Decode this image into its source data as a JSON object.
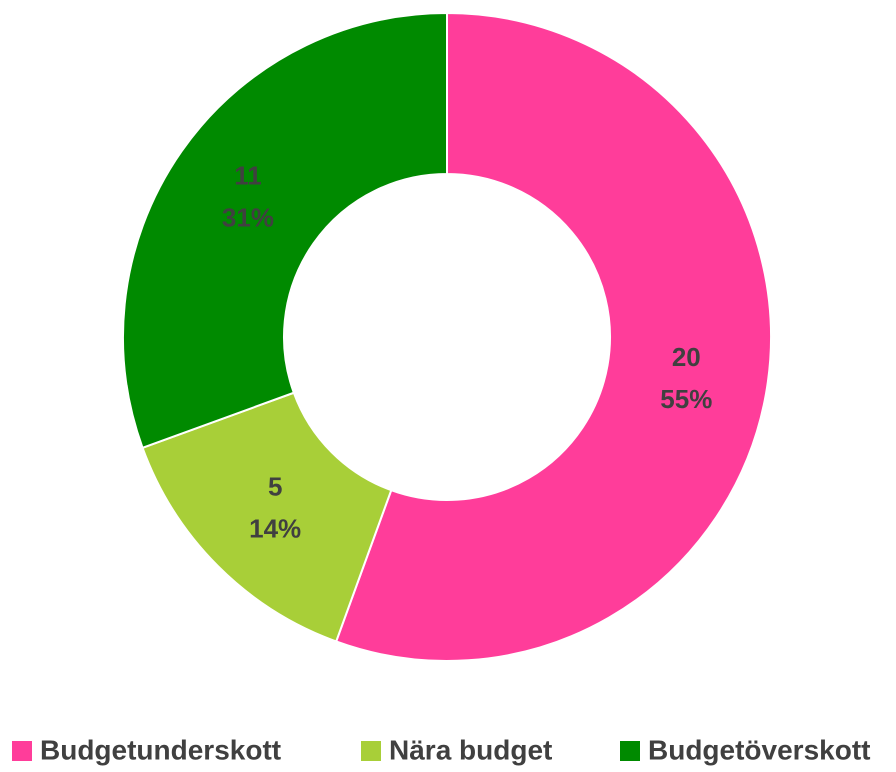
{
  "chart_data": {
    "type": "donut",
    "categories": [
      "Budgetunderskott",
      "Nära budget",
      "Budgetöverskott"
    ],
    "values": [
      20,
      5,
      11
    ],
    "percent_labels": [
      "55%",
      "14%",
      "31%"
    ],
    "colors": [
      "#ff3d9a",
      "#a8cf38",
      "#008a00"
    ],
    "legend": "bottom"
  }
}
